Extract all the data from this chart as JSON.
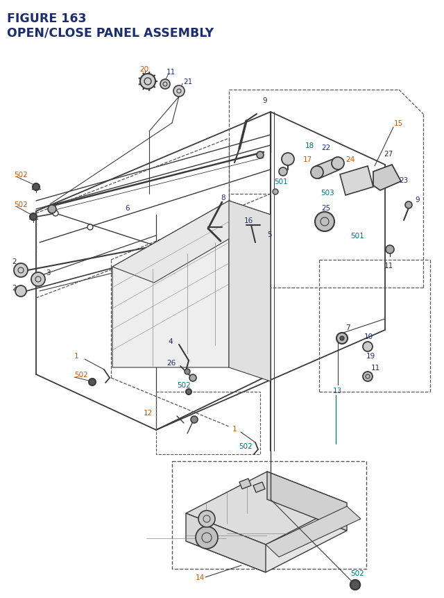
{
  "title_line1": "FIGURE 163",
  "title_line2": "OPEN/CLOSE PANEL ASSEMBLY",
  "title_color": "#1c2d6e",
  "label_blue": "#1c2d6e",
  "label_orange": "#cc5500",
  "label_teal": "#007080",
  "line_color": "#3a3a3a",
  "line_color_light": "#888888",
  "dashed_color": "#555555",
  "bg_color": "#ffffff",
  "figsize": [
    6.4,
    8.62
  ],
  "dpi": 100
}
